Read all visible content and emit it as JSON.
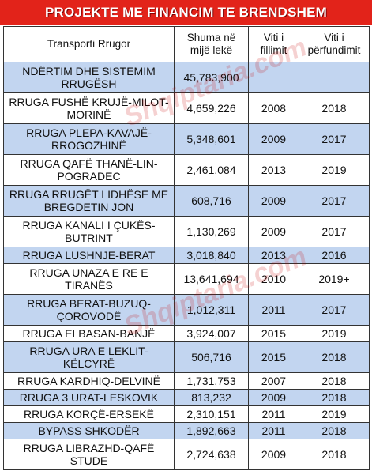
{
  "banner": {
    "title": "PROJEKTE ME FINANCIM TE BRENDSHEM"
  },
  "table": {
    "headers": {
      "project": "Transporti Rrugor",
      "amount": "Shuma në mijë lekë",
      "start_year": "Viti i fillimit",
      "end_year": "Viti i përfundimit"
    },
    "rows": [
      {
        "project": "NDËRTIM DHE SISTEMIM RRUGËSH",
        "amount": "45,783,900",
        "start_year": "",
        "end_year": ""
      },
      {
        "project": "RRUGA FUSHË KRUJË-MILOT-MORINË",
        "amount": "4,659,226",
        "start_year": "2008",
        "end_year": "2018"
      },
      {
        "project": "RRUGA PLEPA-KAVAJË-RROGOZHINË",
        "amount": "5,348,601",
        "start_year": "2009",
        "end_year": "2017"
      },
      {
        "project": "RRUGA QAFË THANË-LIN-POGRADEC",
        "amount": "2,461,084",
        "start_year": "2013",
        "end_year": "2019"
      },
      {
        "project": "RRUGA RRUGËT LIDHËSE ME BREGDETIN JON",
        "amount": "608,716",
        "start_year": "2009",
        "end_year": "2017"
      },
      {
        "project": "RRUGA KANALI I ÇUKËS-BUTRINT",
        "amount": "1,130,269",
        "start_year": "2009",
        "end_year": "2017"
      },
      {
        "project": "RRUGA LUSHNJE-BERAT",
        "amount": "3,018,840",
        "start_year": "2013",
        "end_year": "2016"
      },
      {
        "project": "RRUGA UNAZA E RE E TIRANËS",
        "amount": "13,641,694",
        "start_year": "2010",
        "end_year": "2019+"
      },
      {
        "project": "RRUGA BERAT-BUZUQ-ÇOROVODË",
        "amount": "1,012,311",
        "start_year": "2011",
        "end_year": "2017"
      },
      {
        "project": "RRUGA ELBASAN-BANJË",
        "amount": "3,924,007",
        "start_year": "2015",
        "end_year": "2019"
      },
      {
        "project": "RRUGA URA E LEKLIT-KËLCYRË",
        "amount": "506,716",
        "start_year": "2015",
        "end_year": "2018"
      },
      {
        "project": "RRUGA KARDHIQ-DELVINË",
        "amount": "1,731,753",
        "start_year": "2007",
        "end_year": "2018"
      },
      {
        "project": "RRUGA 3 URAT-LESKOVIK",
        "amount": "813,232",
        "start_year": "2009",
        "end_year": "2018"
      },
      {
        "project": "RRUGA KORÇË-ERSEKË",
        "amount": "2,310,151",
        "start_year": "2011",
        "end_year": "2019"
      },
      {
        "project": "BYPASS SHKODËR",
        "amount": "1,892,663",
        "start_year": "2011",
        "end_year": "2018"
      },
      {
        "project": "RRUGA LIBRAZHD-QAFË STUDE",
        "amount": "2,724,638",
        "start_year": "2009",
        "end_year": "2018"
      }
    ]
  },
  "watermark": {
    "text": "Shqiptaria.com"
  },
  "colors": {
    "banner": "#e2231a",
    "row_blue": "#c2d5f0",
    "row_white": "#ffffff",
    "border": "#333333"
  }
}
